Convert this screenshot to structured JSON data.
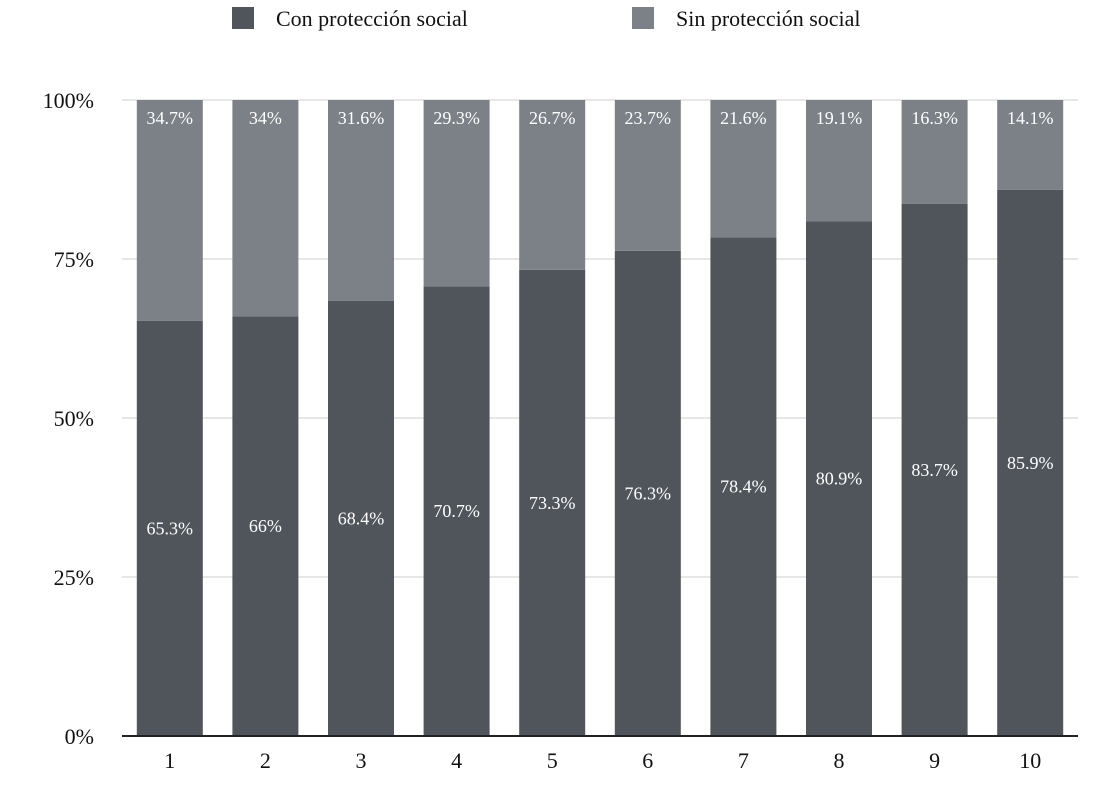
{
  "chart_data": {
    "type": "bar",
    "stacked": true,
    "title": "",
    "xlabel": "",
    "ylabel": "",
    "ylim": [
      0,
      100
    ],
    "grid": true,
    "legend_position": "top-center",
    "categories": [
      "1",
      "2",
      "3",
      "4",
      "5",
      "6",
      "7",
      "8",
      "9",
      "10"
    ],
    "y_ticks": [
      {
        "value": 0,
        "label": "0%"
      },
      {
        "value": 25,
        "label": "25%"
      },
      {
        "value": 50,
        "label": "50%"
      },
      {
        "value": 75,
        "label": "75%"
      },
      {
        "value": 100,
        "label": "100%"
      }
    ],
    "series": [
      {
        "name": "Con protección social",
        "color": "#50555c",
        "values": [
          65.3,
          66,
          68.4,
          70.7,
          73.3,
          76.3,
          78.4,
          80.9,
          83.7,
          85.9
        ],
        "labels": [
          "65.3%",
          "66%",
          "68.4%",
          "70.7%",
          "73.3%",
          "76.3%",
          "78.4%",
          "80.9%",
          "83.7%",
          "85.9%"
        ]
      },
      {
        "name": "Sin protección social",
        "color": "#7b8187",
        "values": [
          34.7,
          34,
          31.6,
          29.3,
          26.7,
          23.7,
          21.6,
          19.1,
          16.3,
          14.1
        ],
        "labels": [
          "34.7%",
          "34%",
          "31.6%",
          "29.3%",
          "26.7%",
          "23.7%",
          "21.6%",
          "19.1%",
          "16.3%",
          "14.1%"
        ]
      }
    ]
  }
}
